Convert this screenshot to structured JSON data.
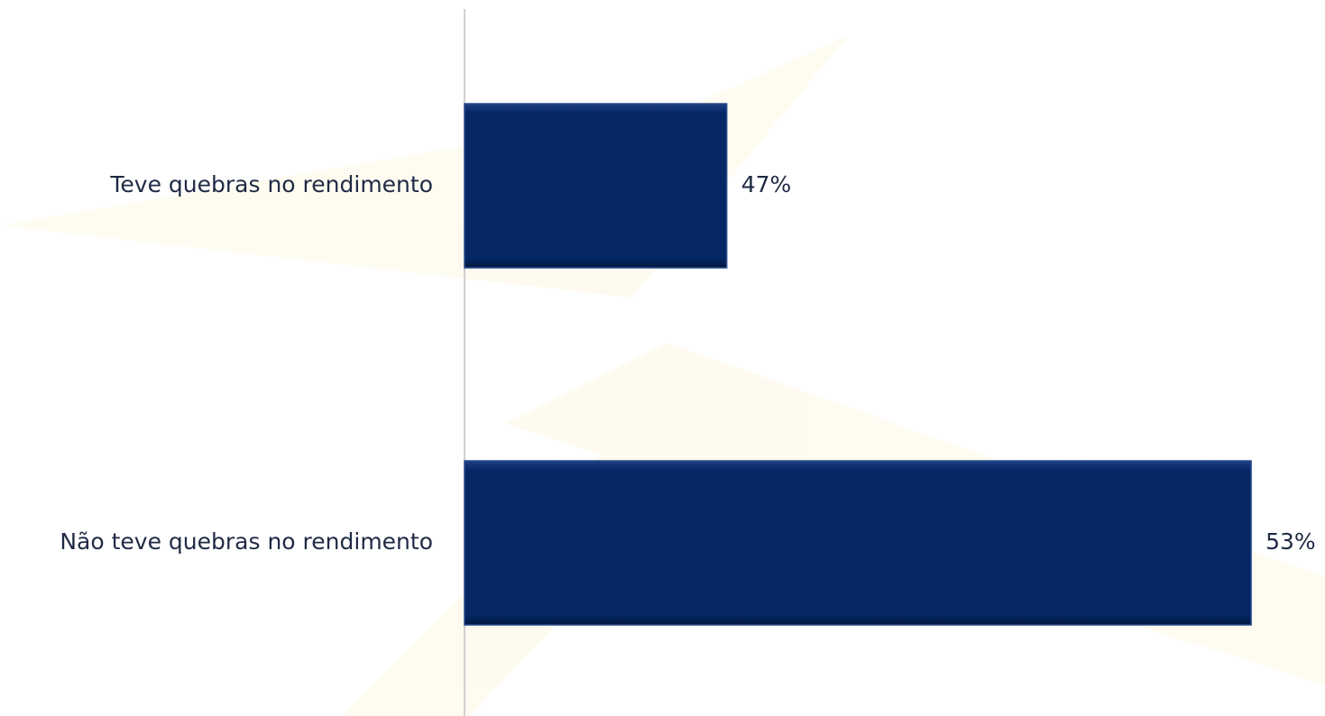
{
  "chart_data": {
    "type": "barh",
    "categories": [
      "Teve quebras no rendimento",
      "Não teve quebras no rendimento"
    ],
    "values": [
      47,
      53
    ],
    "value_labels": [
      "47%",
      "53%"
    ],
    "color": "#052766",
    "xlim": [
      44,
      54
    ]
  }
}
